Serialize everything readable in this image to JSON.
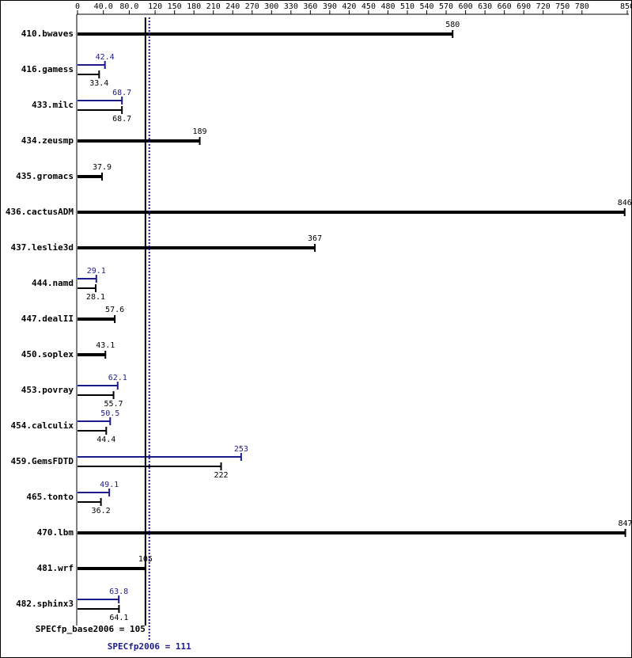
{
  "chart_data": {
    "type": "bar",
    "orientation": "horizontal",
    "categories": [
      "410.bwaves",
      "416.gamess",
      "433.milc",
      "434.zeusmp",
      "435.gromacs",
      "436.cactusADM",
      "437.leslie3d",
      "444.namd",
      "447.dealII",
      "450.soplex",
      "453.povray",
      "454.calculix",
      "459.GemsFDTD",
      "465.tonto",
      "470.lbm",
      "481.wrf",
      "482.sphinx3"
    ],
    "series": [
      {
        "color": "#000000",
        "values": [
          580,
          33.4,
          68.7,
          189,
          37.9,
          846,
          367,
          28.1,
          57.6,
          43.1,
          55.7,
          44.4,
          222,
          36.2,
          847,
          105,
          64.1
        ]
      },
      {
        "color": "#1c1c8c",
        "values": [
          null,
          42.4,
          68.7,
          null,
          null,
          null,
          null,
          29.1,
          null,
          null,
          62.1,
          50.5,
          253,
          49.1,
          null,
          null,
          63.8
        ]
      }
    ],
    "xlim": [
      0,
      850
    ],
    "xticks": [
      0,
      {
        "value": 40,
        "label": "40.0"
      },
      {
        "value": 80,
        "label": "80.0"
      },
      120,
      150,
      180,
      210,
      240,
      270,
      300,
      330,
      360,
      390,
      420,
      450,
      480,
      510,
      540,
      570,
      600,
      630,
      660,
      690,
      720,
      750,
      780,
      850
    ],
    "reference_lines": [
      {
        "label": "SPECfp_base2006 = 105",
        "value": 105,
        "color": "#000000",
        "style": "solid"
      },
      {
        "label": "SPECfp2006 = 111",
        "value": 111,
        "color": "#1c1c8c",
        "style": "dotted"
      }
    ]
  }
}
